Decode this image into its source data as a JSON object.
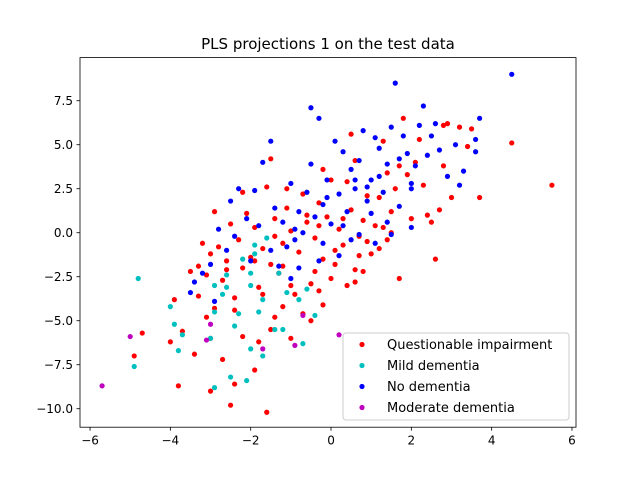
{
  "chart_data": {
    "type": "scatter",
    "title": "PLS projections 1 on the test data",
    "xlabel": "",
    "ylabel": "",
    "xlim": [
      -6.25,
      6.1
    ],
    "ylim": [
      -11.05,
      9.95
    ],
    "xticks": [
      -6,
      -4,
      -2,
      0,
      2,
      4,
      6
    ],
    "xtick_labels": [
      "−6",
      "−4",
      "−2",
      "0",
      "2",
      "4",
      "6"
    ],
    "yticks": [
      -10.0,
      -7.5,
      -5.0,
      -2.5,
      0.0,
      2.5,
      5.0,
      7.5
    ],
    "ytick_labels": [
      "−10.0",
      "−7.5",
      "−5.0",
      "−2.5",
      "0.0",
      "2.5",
      "5.0",
      "7.5"
    ],
    "grid": false,
    "legend_position": "lower-right",
    "series": [
      {
        "name": "Questionable impairment",
        "color": "#ff0000",
        "points": [
          [
            5.5,
            2.7
          ],
          [
            4.5,
            5.1
          ],
          [
            3.7,
            2.0
          ],
          [
            3.2,
            6.0
          ],
          [
            2.9,
            6.2
          ],
          [
            2.8,
            6.1
          ],
          [
            3.0,
            2.0
          ],
          [
            2.6,
            -1.5
          ],
          [
            2.4,
            1.0
          ],
          [
            2.5,
            0.6
          ],
          [
            2.2,
            5.3
          ],
          [
            2.1,
            4.0
          ],
          [
            1.8,
            6.5
          ],
          [
            1.7,
            3.8
          ],
          [
            1.6,
            2.5
          ],
          [
            1.5,
            1.2
          ],
          [
            1.4,
            3.4
          ],
          [
            1.3,
            0.3
          ],
          [
            1.2,
            -0.9
          ],
          [
            1.1,
            0.4
          ],
          [
            1.0,
            -1.2
          ],
          [
            0.9,
            2.1
          ],
          [
            0.8,
            0.7
          ],
          [
            0.7,
            -0.2
          ],
          [
            0.6,
            -2.1
          ],
          [
            0.5,
            1.3
          ],
          [
            0.4,
            2.9
          ],
          [
            0.3,
            -0.7
          ],
          [
            0.2,
            0.2
          ],
          [
            0.1,
            -1.0
          ],
          [
            0.0,
            3.0
          ],
          [
            0.0,
            -2.6
          ],
          [
            -0.1,
            0.9
          ],
          [
            -0.2,
            -1.5
          ],
          [
            -0.3,
            1.7
          ],
          [
            -0.4,
            -0.3
          ],
          [
            -0.5,
            -2.9
          ],
          [
            -0.6,
            0.6
          ],
          [
            -0.7,
            2.2
          ],
          [
            -0.8,
            -1.1
          ],
          [
            -0.9,
            -3.5
          ],
          [
            -1.0,
            0.1
          ],
          [
            -1.1,
            1.4
          ],
          [
            -1.2,
            -0.6
          ],
          [
            -1.3,
            -2.3
          ],
          [
            -1.4,
            0.8
          ],
          [
            -1.5,
            -1.8
          ],
          [
            -1.6,
            2.6
          ],
          [
            -1.7,
            -0.9
          ],
          [
            -1.8,
            -3.1
          ],
          [
            -1.9,
            0.3
          ],
          [
            -2.0,
            -1.4
          ],
          [
            -2.1,
            1.1
          ],
          [
            -2.2,
            -2.0
          ],
          [
            -2.3,
            -0.4
          ],
          [
            -2.4,
            -3.7
          ],
          [
            -2.5,
            0.5
          ],
          [
            -2.6,
            -1.6
          ],
          [
            -2.7,
            -2.7
          ],
          [
            -2.8,
            -0.8
          ],
          [
            -2.9,
            -4.3
          ],
          [
            -3.0,
            -1.2
          ],
          [
            -3.1,
            -2.4
          ],
          [
            -3.2,
            -0.6
          ],
          [
            -3.3,
            -3.6
          ],
          [
            -3.5,
            -2.2
          ],
          [
            -3.7,
            -5.6
          ],
          [
            -3.9,
            -3.8
          ],
          [
            -4.0,
            -6.2
          ],
          [
            -4.7,
            -5.7
          ],
          [
            -4.9,
            -7.0
          ],
          [
            -3.0,
            -9.0
          ],
          [
            -2.5,
            -9.8
          ],
          [
            -1.6,
            -10.2
          ],
          [
            -1.9,
            -7.8
          ],
          [
            -2.4,
            -8.6
          ],
          [
            -1.0,
            -6.0
          ],
          [
            -0.5,
            -5.0
          ],
          [
            0.4,
            -3.0
          ],
          [
            0.8,
            -2.2
          ],
          [
            1.7,
            -2.6
          ],
          [
            -1.2,
            -4.2
          ],
          [
            -1.5,
            -5.5
          ],
          [
            -0.7,
            -4.6
          ],
          [
            -2.2,
            -5.9
          ],
          [
            -3.4,
            -6.9
          ],
          [
            -1.8,
            -6.2
          ],
          [
            -0.2,
            -4.1
          ],
          [
            0.6,
            -2.8
          ],
          [
            1.9,
            3.3
          ],
          [
            2.3,
            2.7
          ],
          [
            1.2,
            2.0
          ],
          [
            0.6,
            4.1
          ],
          [
            -0.2,
            3.6
          ],
          [
            -1.1,
            2.5
          ],
          [
            -0.3,
            0.4
          ],
          [
            0.9,
            -0.5
          ],
          [
            -0.6,
            1.0
          ],
          [
            -1.4,
            -0.2
          ],
          [
            0.3,
            0.8
          ],
          [
            1.5,
            0.0
          ],
          [
            2.0,
            0.8
          ],
          [
            2.7,
            1.3
          ],
          [
            3.5,
            5.9
          ],
          [
            3.4,
            4.9
          ],
          [
            2.8,
            3.8
          ],
          [
            1.3,
            5.2
          ],
          [
            0.5,
            5.6
          ],
          [
            -1.5,
            4.2
          ],
          [
            -2.2,
            2.3
          ],
          [
            -2.9,
            1.2
          ],
          [
            -3.3,
            -1.9
          ],
          [
            -2.6,
            -2.1
          ],
          [
            -1.9,
            -1.6
          ],
          [
            -1.2,
            -1.9
          ],
          [
            -0.4,
            -2.2
          ],
          [
            0.1,
            -1.8
          ],
          [
            0.7,
            -1.3
          ],
          [
            1.4,
            -0.4
          ],
          [
            -3.1,
            -4.8
          ],
          [
            -2.4,
            -4.4
          ],
          [
            -1.7,
            -3.5
          ],
          [
            -1.0,
            -3.0
          ],
          [
            -0.3,
            -3.3
          ],
          [
            -3.8,
            -8.7
          ],
          [
            -3.0,
            -6.0
          ],
          [
            -2.7,
            -7.2
          ],
          [
            -1.4,
            -4.8
          ]
        ]
      },
      {
        "name": "Mild dementia",
        "color": "#00bfbf",
        "points": [
          [
            -4.8,
            -2.6
          ],
          [
            -4.0,
            -4.2
          ],
          [
            -3.9,
            -5.2
          ],
          [
            -3.8,
            -6.7
          ],
          [
            -3.7,
            -5.8
          ],
          [
            -4.9,
            -7.6
          ],
          [
            -3.0,
            -6.0
          ],
          [
            -2.9,
            -8.8
          ],
          [
            -2.5,
            -8.2
          ],
          [
            -2.1,
            -8.4
          ],
          [
            -2.0,
            -6.6
          ],
          [
            -1.7,
            -7.0
          ],
          [
            -2.9,
            -4.5
          ],
          [
            -2.7,
            -3.5
          ],
          [
            -2.6,
            -3.1
          ],
          [
            -2.3,
            -4.6
          ],
          [
            -2.4,
            -5.3
          ],
          [
            -1.8,
            -4.5
          ],
          [
            -1.7,
            -3.8
          ],
          [
            -1.4,
            -5.5
          ],
          [
            -1.2,
            -5.5
          ],
          [
            -0.8,
            -3.8
          ],
          [
            -0.7,
            -6.3
          ],
          [
            -0.4,
            -4.7
          ],
          [
            -0.6,
            -3.2
          ],
          [
            -2.0,
            -2.3
          ],
          [
            -1.9,
            -1.2
          ],
          [
            -2.2,
            -1.5
          ],
          [
            -1.6,
            -0.3
          ],
          [
            -1.9,
            -0.7
          ],
          [
            -1.3,
            -2.3
          ],
          [
            -2.9,
            -3.0
          ],
          [
            -2.0,
            -3.0
          ],
          [
            -1.1,
            -3.4
          ],
          [
            -2.6,
            -2.4
          ]
        ]
      },
      {
        "name": "No dementia",
        "color": "#0000ff",
        "points": [
          [
            4.5,
            9.0
          ],
          [
            3.7,
            6.5
          ],
          [
            3.6,
            5.3
          ],
          [
            3.6,
            4.6
          ],
          [
            3.3,
            3.5
          ],
          [
            3.2,
            2.7
          ],
          [
            3.1,
            5.0
          ],
          [
            2.7,
            4.7
          ],
          [
            2.6,
            6.2
          ],
          [
            2.5,
            5.5
          ],
          [
            2.4,
            4.4
          ],
          [
            2.3,
            7.2
          ],
          [
            2.2,
            6.1
          ],
          [
            2.1,
            3.8
          ],
          [
            2.0,
            2.8
          ],
          [
            1.9,
            4.5
          ],
          [
            1.8,
            5.5
          ],
          [
            1.7,
            4.2
          ],
          [
            1.6,
            8.5
          ],
          [
            1.5,
            6.0
          ],
          [
            1.4,
            3.9
          ],
          [
            1.3,
            2.3
          ],
          [
            1.2,
            4.8
          ],
          [
            1.1,
            5.4
          ],
          [
            1.0,
            3.0
          ],
          [
            0.9,
            1.8
          ],
          [
            0.8,
            5.8
          ],
          [
            0.7,
            4.1
          ],
          [
            0.6,
            2.5
          ],
          [
            0.5,
            3.6
          ],
          [
            0.4,
            1.2
          ],
          [
            0.3,
            4.6
          ],
          [
            0.2,
            2.2
          ],
          [
            0.1,
            5.2
          ],
          [
            0.0,
            0.5
          ],
          [
            -0.1,
            3.0
          ],
          [
            -0.2,
            1.6
          ],
          [
            -0.3,
            6.5
          ],
          [
            -0.4,
            0.9
          ],
          [
            -0.5,
            7.1
          ],
          [
            -0.6,
            2.3
          ],
          [
            -0.7,
            0.0
          ],
          [
            -0.8,
            1.2
          ],
          [
            -0.9,
            -0.4
          ],
          [
            -1.0,
            2.8
          ],
          [
            -1.1,
            -0.8
          ],
          [
            -1.2,
            0.6
          ],
          [
            -1.3,
            -1.9
          ],
          [
            -1.4,
            1.4
          ],
          [
            -1.5,
            -1.0
          ],
          [
            -1.7,
            4.0
          ],
          [
            -1.8,
            0.4
          ],
          [
            -1.9,
            2.4
          ],
          [
            -2.0,
            -1.6
          ],
          [
            -2.1,
            0.8
          ],
          [
            -2.3,
            2.5
          ],
          [
            -2.4,
            -0.2
          ],
          [
            -2.5,
            1.8
          ],
          [
            -2.6,
            -1.0
          ],
          [
            -2.8,
            0.2
          ],
          [
            -3.0,
            -1.8
          ],
          [
            -3.2,
            -2.3
          ],
          [
            -3.4,
            -2.8
          ],
          [
            -3.5,
            -3.4
          ],
          [
            -2.9,
            -3.9
          ],
          [
            1.5,
            -0.1
          ],
          [
            1.7,
            1.5
          ],
          [
            2.0,
            0.3
          ],
          [
            2.0,
            2.5
          ],
          [
            1.0,
            1.1
          ],
          [
            0.3,
            0.4
          ],
          [
            -0.2,
            -0.6
          ],
          [
            0.7,
            -0.1
          ],
          [
            1.2,
            3.2
          ],
          [
            -0.5,
            3.9
          ],
          [
            -1.5,
            5.2
          ],
          [
            0.6,
            3.0
          ],
          [
            1.4,
            0.6
          ],
          [
            -0.8,
            -2.0
          ],
          [
            0.2,
            -1.3
          ],
          [
            -1.0,
            -2.6
          ],
          [
            -0.3,
            -1.6
          ],
          [
            0.5,
            -0.4
          ],
          [
            1.1,
            -0.6
          ],
          [
            2.9,
            3.2
          ],
          [
            0.9,
            2.6
          ],
          [
            -0.1,
            2.0
          ],
          [
            -0.9,
            0.2
          ]
        ]
      },
      {
        "name": "Moderate dementia",
        "color": "#bf00bf",
        "points": [
          [
            -5.7,
            -8.7
          ],
          [
            -5.0,
            -5.9
          ],
          [
            -3.1,
            -6.1
          ],
          [
            -1.7,
            -6.6
          ],
          [
            -0.9,
            -6.4
          ],
          [
            -0.7,
            -4.7
          ],
          [
            0.2,
            -5.8
          ],
          [
            -3.0,
            -5.2
          ]
        ]
      }
    ]
  }
}
